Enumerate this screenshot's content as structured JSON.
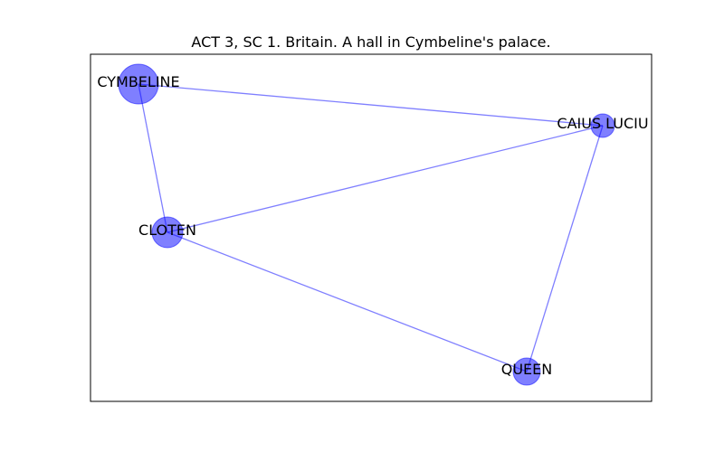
{
  "title": "ACT 3, SC 1. Britain. A hall in Cymbeline's palace.",
  "colors": {
    "node_fill": "#0000ff",
    "edge": "#0000ff",
    "frame": "#000000",
    "background": "#ffffff"
  },
  "nodes": {
    "cymbeline": {
      "label": "CYMBELINE"
    },
    "caius": {
      "label": "CAIUS LUCIU"
    },
    "cloten": {
      "label": "CLOTEN"
    },
    "queen": {
      "label": "QUEEN"
    }
  },
  "edges": [
    [
      "cymbeline",
      "caius"
    ],
    [
      "cymbeline",
      "cloten"
    ],
    [
      "caius",
      "cloten"
    ],
    [
      "caius",
      "queen"
    ],
    [
      "cloten",
      "queen"
    ]
  ]
}
